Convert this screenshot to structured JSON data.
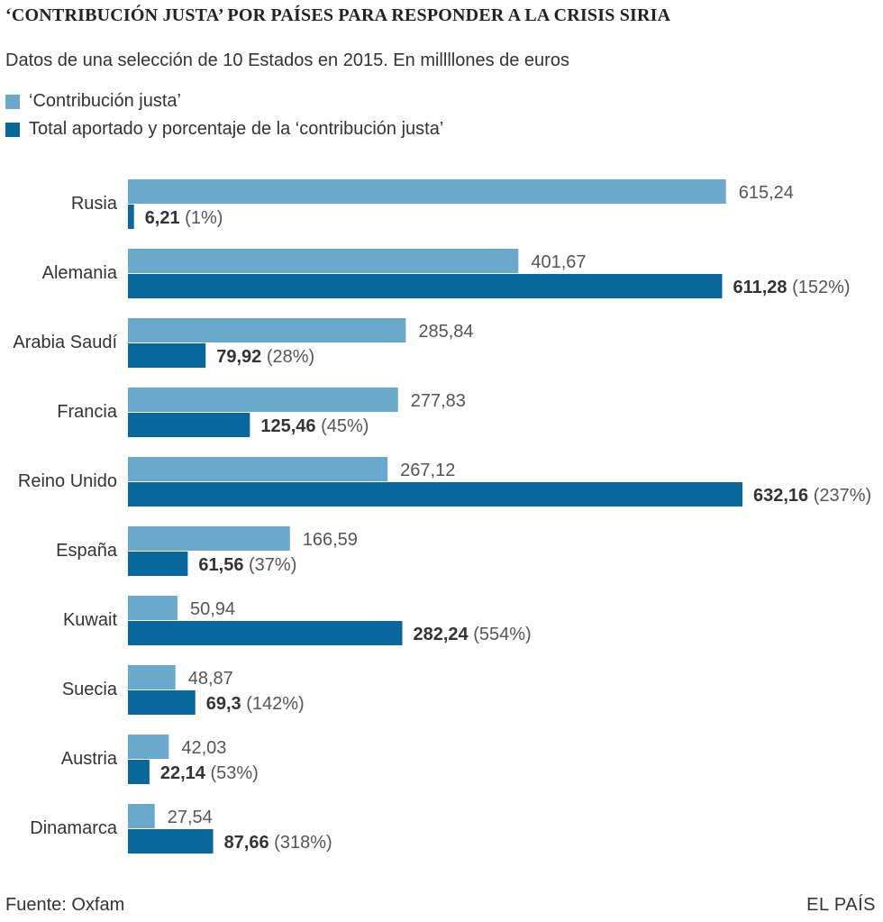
{
  "title": "‘CONTRIBUCIÓN JUSTA’ POR PAÍSES PARA RESPONDER A LA CRISIS SIRIA",
  "subtitle": "Datos de una selección de 10 Estados en 2015. En millllones de euros",
  "legend": {
    "fair": "‘Contribución justa’",
    "actual": "Total aportado y porcentaje de la ‘contribución justa’"
  },
  "colors": {
    "fair": "#6aa9cb",
    "actual": "#08679d",
    "text": "#333333"
  },
  "footer": {
    "source": "Fuente: Oxfam",
    "brand": "EL PAÍS"
  },
  "chart_data": {
    "type": "bar",
    "orientation": "horizontal",
    "title": "‘CONTRIBUCIÓN JUSTA’ POR PAÍSES PARA RESPONDER A LA CRISIS SIRIA",
    "xlabel": "",
    "ylabel": "",
    "xlim": [
      0,
      632.16
    ],
    "categories": [
      "Rusia",
      "Alemania",
      "Arabia Saudí",
      "Francia",
      "Reino Unido",
      "España",
      "Kuwait",
      "Suecia",
      "Austria",
      "Dinamarca"
    ],
    "series": [
      {
        "name": "‘Contribución justa’",
        "values": [
          615.24,
          401.67,
          285.84,
          277.83,
          267.12,
          166.59,
          50.94,
          48.87,
          42.03,
          27.54
        ],
        "labels": [
          "615,24",
          "401,67",
          "285,84",
          "277,83",
          "267,12",
          "166,59",
          "50,94",
          "48,87",
          "42,03",
          "27,54"
        ]
      },
      {
        "name": "Total aportado y porcentaje de la ‘contribución justa’",
        "values": [
          6.21,
          611.28,
          79.92,
          125.46,
          632.16,
          61.56,
          282.24,
          69.3,
          22.14,
          87.66
        ],
        "labels": [
          "6,21",
          "611,28",
          "79,92",
          "125,46",
          "632,16",
          "61,56",
          "282,24",
          "69,3",
          "22,14",
          "87,66"
        ],
        "percent_labels": [
          "(1%)",
          "(152%)",
          "(28%)",
          "(45%)",
          "(237%)",
          "(37%)",
          "(554%)",
          "(142%)",
          "(53%)",
          "(318%)"
        ]
      }
    ]
  }
}
